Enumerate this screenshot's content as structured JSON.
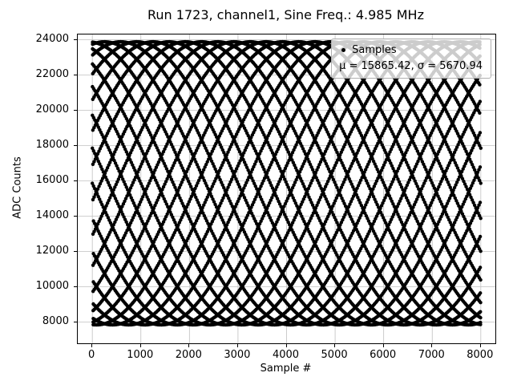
{
  "chart_data": {
    "type": "scatter",
    "title": "Run 1723, channel1, Sine Freq.: 4.985 MHz",
    "xlabel": "Sample #",
    "ylabel": "ADC Counts",
    "x_ticks": [
      0,
      1000,
      2000,
      3000,
      4000,
      5000,
      6000,
      7000,
      8000
    ],
    "y_ticks": [
      8000,
      10000,
      12000,
      14000,
      16000,
      18000,
      20000,
      22000,
      24000
    ],
    "xlim": [
      -300,
      8300
    ],
    "ylim": [
      6800,
      24300
    ],
    "grid": true,
    "n_samples": 8001,
    "signal": {
      "mean": 15865.42,
      "sigma": 5670.94,
      "amplitude": 8019.86,
      "freq_cycles_per_sample": 0.03988,
      "phase": 0.0
    },
    "legend": {
      "position": "upper right",
      "series_label": "Samples",
      "stats_label": "μ = 15865.42, σ = 5670.94"
    },
    "colors": {
      "marker": "#000000",
      "grid": "#c0c0c0",
      "spine": "#000000"
    }
  }
}
